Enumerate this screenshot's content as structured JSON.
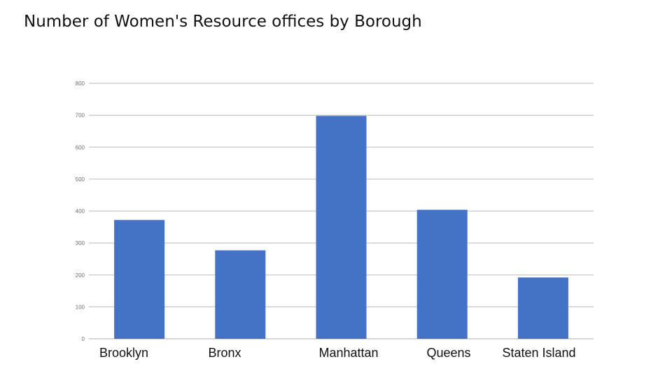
{
  "title": "Number of Women's Resource offices by Borough",
  "chart_data": {
    "type": "bar",
    "title": "Number of Women's Resource offices by Borough",
    "categories": [
      "Brooklyn",
      "Bronx",
      "Manhattan",
      "Queens",
      "Staten Island"
    ],
    "values": [
      372,
      277,
      698,
      404,
      192
    ],
    "xlabel": "",
    "ylabel": "",
    "ylim": [
      0,
      800
    ],
    "yticks": [
      0,
      100,
      200,
      300,
      400,
      500,
      600,
      700,
      800
    ],
    "grid": true,
    "legend": "none",
    "bar_color": "#4472C4",
    "grid_color": "#c8c8c8"
  }
}
